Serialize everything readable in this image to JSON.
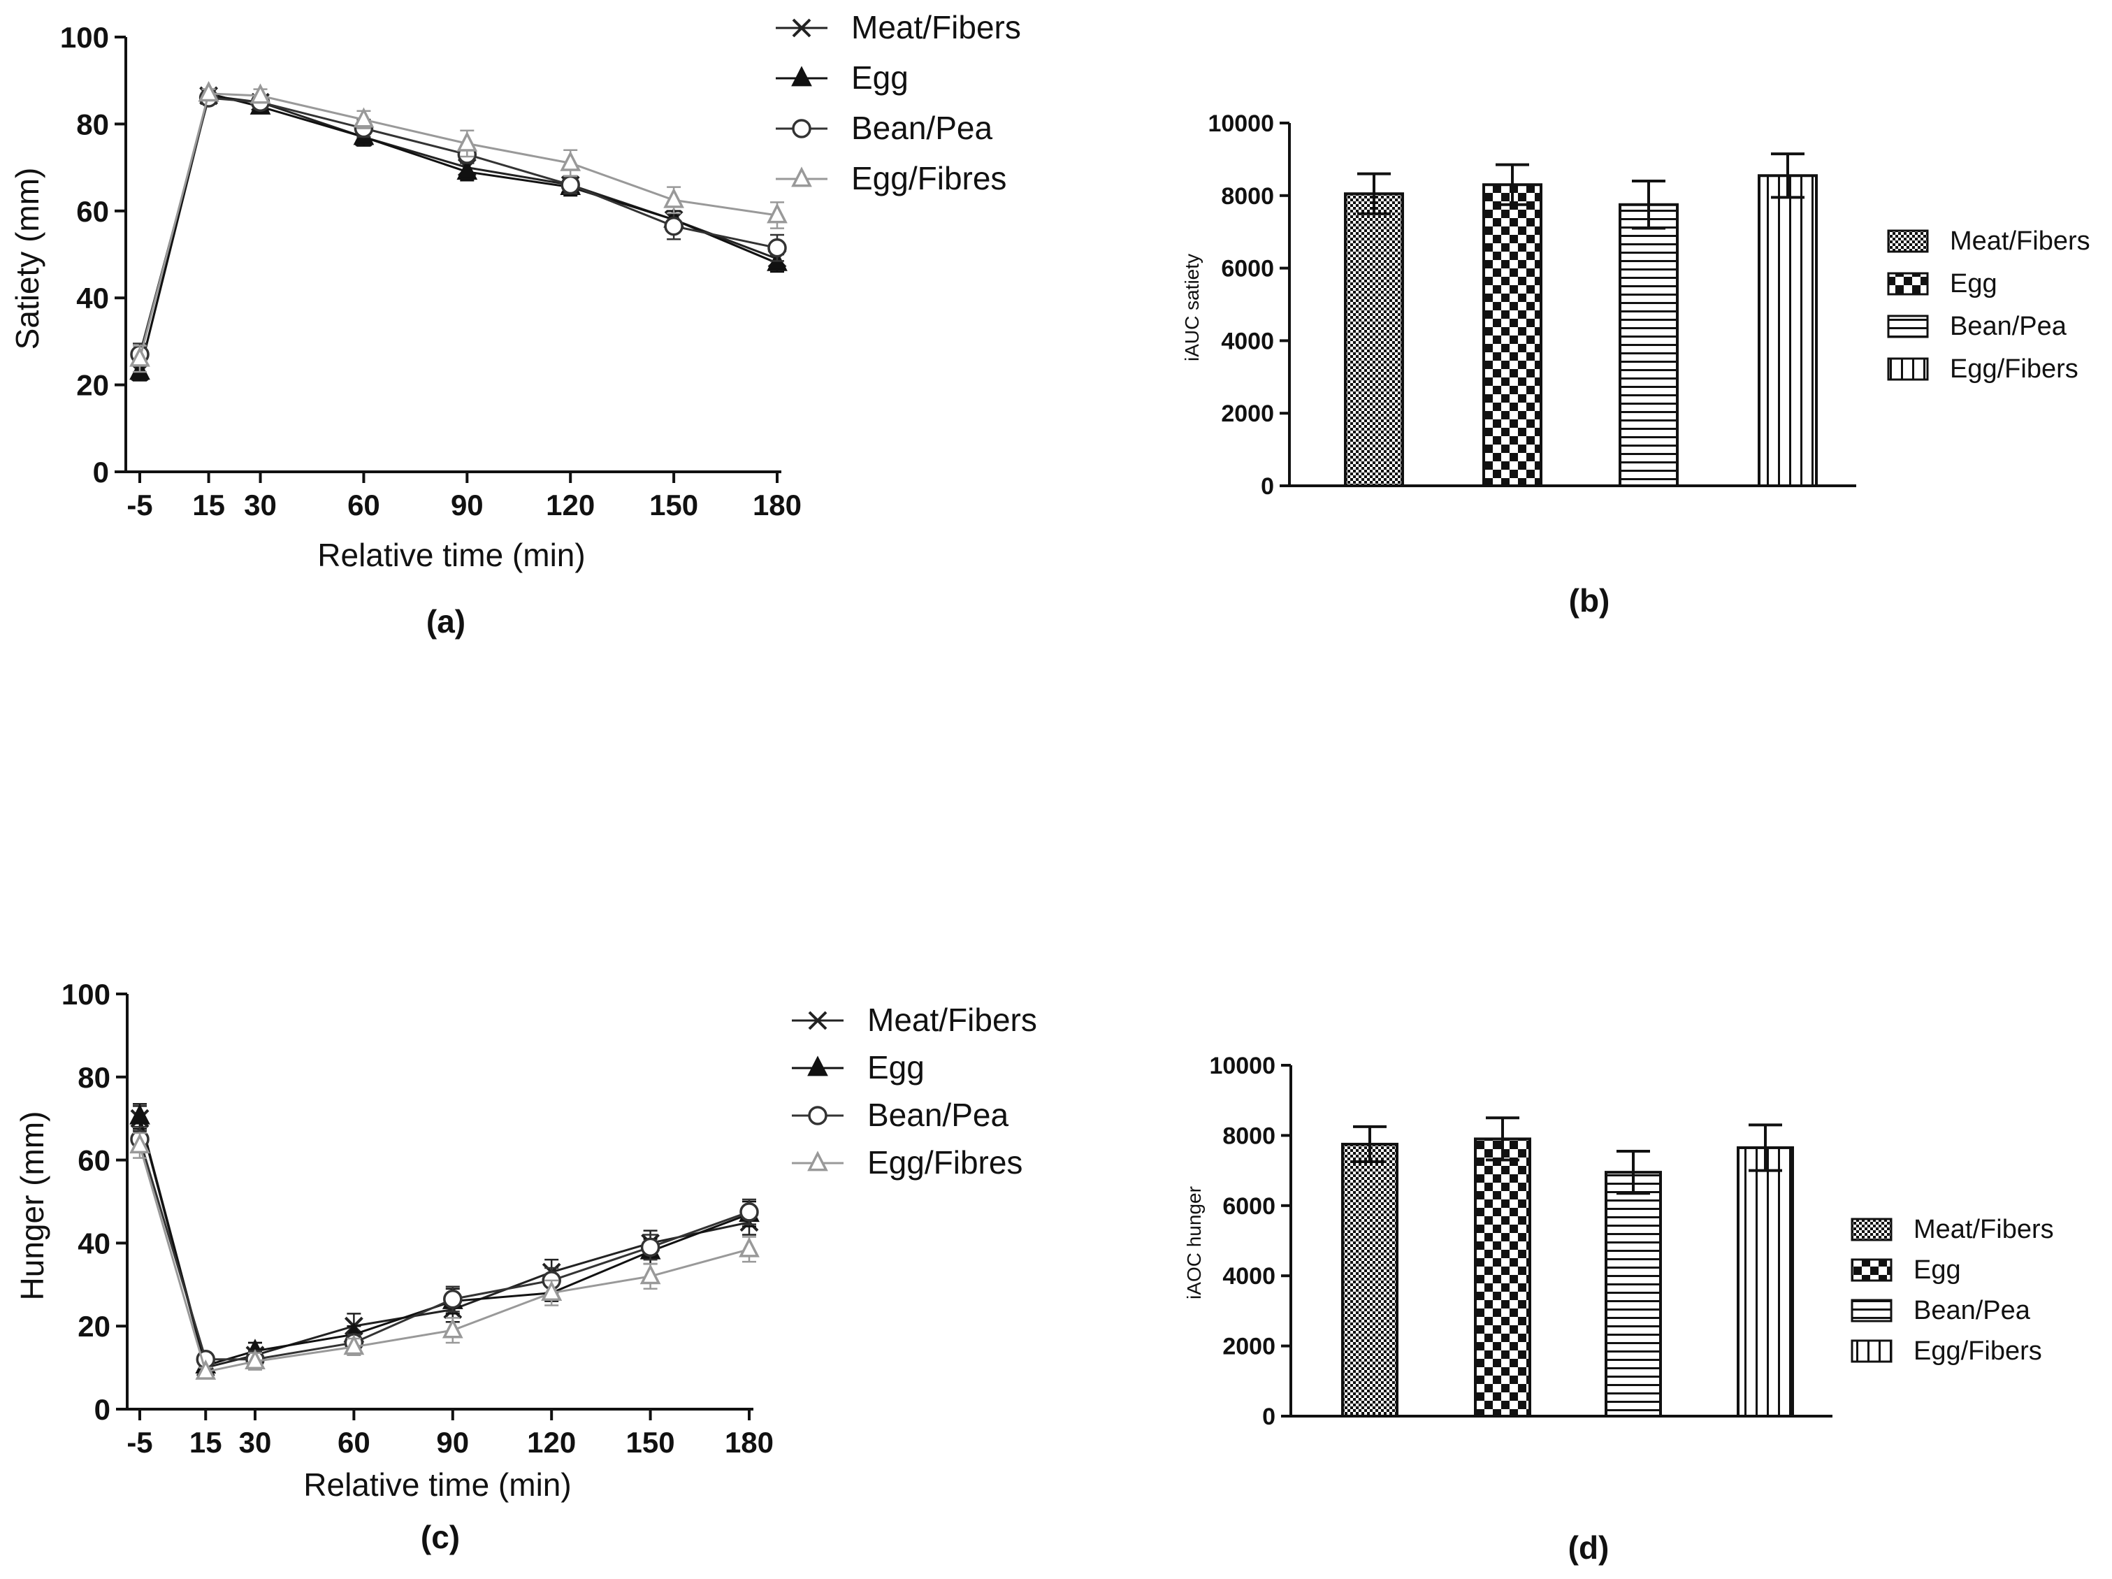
{
  "figure_colors": {
    "axis": "#111111",
    "series_dark": "#222222",
    "series_gray": "#999999"
  },
  "chart_data": [
    {
      "id": "a",
      "type": "line",
      "panel_label": "(a)",
      "title": "",
      "xlabel": "Relative time (min)",
      "ylabel": "Satiety (mm)",
      "x": [
        -5,
        15,
        30,
        60,
        90,
        120,
        150,
        180
      ],
      "x_tick_labels": [
        "-5",
        "15",
        "30",
        "60",
        "90",
        "120",
        "150",
        "180"
      ],
      "ylim": [
        0,
        100
      ],
      "y_ticks": [
        0,
        20,
        40,
        60,
        80,
        100
      ],
      "legend_position": "top-right, outside plot",
      "series": [
        {
          "name": "Meat/Fibers",
          "marker": "x",
          "color": "#222222",
          "values": [
            23,
            86.5,
            85,
            77,
            70,
            66,
            58,
            49
          ],
          "errors": [
            2,
            1,
            1,
            2,
            2,
            2,
            2,
            2
          ]
        },
        {
          "name": "Egg",
          "marker": "triangle-filled",
          "color": "#111111",
          "values": [
            23,
            87,
            84,
            77,
            69,
            65.5,
            58,
            48
          ],
          "errors": [
            2,
            1,
            1,
            2,
            2,
            2,
            2,
            2
          ]
        },
        {
          "name": "Bean/Pea",
          "marker": "circle-open",
          "color": "#333333",
          "values": [
            27,
            86,
            85,
            79,
            73,
            66,
            56.5,
            51.5
          ],
          "errors": [
            2.5,
            1,
            1.5,
            2,
            2,
            2,
            3,
            3
          ]
        },
        {
          "name": "Egg/Fibres",
          "marker": "triangle-open",
          "color": "#999999",
          "values": [
            26,
            87,
            86.5,
            81,
            75.5,
            71,
            62.5,
            59
          ],
          "errors": [
            3,
            1,
            1.5,
            2,
            3,
            3,
            3,
            3
          ]
        }
      ]
    },
    {
      "id": "b",
      "type": "bar",
      "panel_label": "(b)",
      "title": "",
      "xlabel": "",
      "ylabel": "iAUC satiety",
      "categories": [
        "Meat/Fibers",
        "Egg",
        "Bean/Pea",
        "Egg/Fibers"
      ],
      "values": [
        8050,
        8300,
        7750,
        8550
      ],
      "errors": [
        550,
        550,
        650,
        600
      ],
      "patterns": [
        "dense-dots",
        "checker",
        "horizontal-lines",
        "vertical-lines"
      ],
      "ylim": [
        0,
        10000
      ],
      "y_ticks": [
        0,
        2000,
        4000,
        6000,
        8000,
        10000
      ],
      "legend_position": "right"
    },
    {
      "id": "c",
      "type": "line",
      "panel_label": "(c)",
      "title": "",
      "xlabel": "Relative time (min)",
      "ylabel": "Hunger (mm)",
      "x": [
        -5,
        15,
        30,
        60,
        90,
        120,
        150,
        180
      ],
      "x_tick_labels": [
        "-5",
        "15",
        "30",
        "60",
        "90",
        "120",
        "150",
        "180"
      ],
      "ylim": [
        0,
        100
      ],
      "y_ticks": [
        0,
        20,
        40,
        60,
        80,
        100
      ],
      "legend_position": "top-right, outside plot",
      "series": [
        {
          "name": "Meat/Fibers",
          "marker": "x",
          "color": "#222222",
          "values": [
            70,
            10,
            13,
            20,
            24,
            33,
            40,
            45
          ],
          "errors": [
            3,
            1,
            3,
            3,
            3,
            3,
            3,
            3
          ]
        },
        {
          "name": "Egg",
          "marker": "triangle-filled",
          "color": "#111111",
          "values": [
            70.5,
            10.5,
            14,
            18,
            26,
            28,
            38,
            47
          ],
          "errors": [
            3,
            1,
            2,
            2,
            3,
            2,
            3,
            3
          ]
        },
        {
          "name": "Bean/Pea",
          "marker": "circle-open",
          "color": "#333333",
          "values": [
            65,
            12,
            12,
            16,
            26.5,
            31,
            39,
            47.5
          ],
          "errors": [
            3,
            1,
            2,
            2,
            3,
            3,
            3,
            3
          ]
        },
        {
          "name": "Egg/Fibres",
          "marker": "triangle-open",
          "color": "#999999",
          "values": [
            63.5,
            9,
            11.5,
            15,
            19,
            28,
            32,
            38.5
          ],
          "errors": [
            3,
            1,
            2,
            2,
            3,
            3,
            3,
            3
          ]
        }
      ]
    },
    {
      "id": "d",
      "type": "bar",
      "panel_label": "(d)",
      "title": "",
      "xlabel": "",
      "ylabel": "iAOC hunger",
      "categories": [
        "Meat/Fibers",
        "Egg",
        "Bean/Pea",
        "Egg/Fibers"
      ],
      "values": [
        7750,
        7900,
        6950,
        7650
      ],
      "errors": [
        500,
        600,
        600,
        650
      ],
      "patterns": [
        "dense-dots",
        "checker",
        "horizontal-lines",
        "vertical-lines"
      ],
      "ylim": [
        0,
        10000
      ],
      "y_ticks": [
        0,
        2000,
        4000,
        6000,
        8000,
        10000
      ],
      "legend_position": "right"
    }
  ]
}
